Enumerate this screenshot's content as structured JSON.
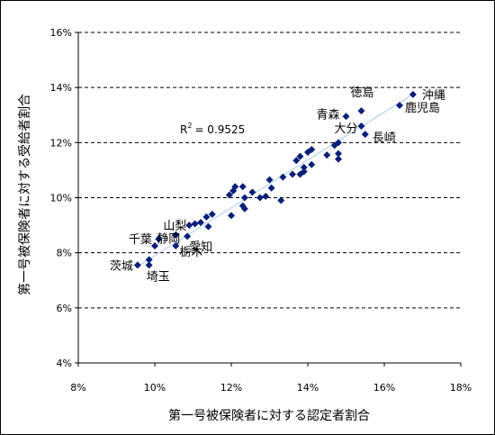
{
  "chart_data": {
    "type": "scatter",
    "xlabel": "第一号被保険者に対する認定者割合",
    "ylabel": "第一号被保険者に対する受給者割合",
    "xlim": [
      8,
      18
    ],
    "ylim": [
      4,
      16
    ],
    "x_ticks": [
      "8%",
      "10%",
      "12%",
      "14%",
      "16%",
      "18%"
    ],
    "y_ticks": [
      "4%",
      "6%",
      "8%",
      "10%",
      "12%",
      "14%",
      "16%"
    ],
    "grid": "horizontal-dashed",
    "marker_color": "#0a1f78",
    "trendline_color": "#a9cfe6",
    "r2_text": "= 0.9525",
    "trendline": {
      "x": [
        9.6,
        16.8
      ],
      "y": [
        7.55,
        13.8
      ]
    },
    "points": [
      {
        "x": 16.75,
        "y": 13.75,
        "label": "沖縄"
      },
      {
        "x": 16.4,
        "y": 13.35,
        "label": "鹿児島"
      },
      {
        "x": 15.4,
        "y": 13.15,
        "label": "徳島"
      },
      {
        "x": 15.0,
        "y": 12.95,
        "label": "青森"
      },
      {
        "x": 15.4,
        "y": 12.6,
        "label": "大分"
      },
      {
        "x": 15.5,
        "y": 12.3,
        "label": "長崎"
      },
      {
        "x": 14.8,
        "y": 12.0
      },
      {
        "x": 14.7,
        "y": 11.9
      },
      {
        "x": 14.8,
        "y": 11.6
      },
      {
        "x": 14.8,
        "y": 11.4
      },
      {
        "x": 14.5,
        "y": 11.55
      },
      {
        "x": 14.1,
        "y": 11.75
      },
      {
        "x": 14.0,
        "y": 11.65
      },
      {
        "x": 13.8,
        "y": 11.5
      },
      {
        "x": 13.9,
        "y": 11.1
      },
      {
        "x": 14.1,
        "y": 11.2
      },
      {
        "x": 13.7,
        "y": 11.35
      },
      {
        "x": 13.6,
        "y": 10.85
      },
      {
        "x": 13.8,
        "y": 10.85
      },
      {
        "x": 13.9,
        "y": 10.95
      },
      {
        "x": 13.35,
        "y": 10.75
      },
      {
        "x": 13.0,
        "y": 10.65
      },
      {
        "x": 13.05,
        "y": 10.35
      },
      {
        "x": 12.9,
        "y": 10.05
      },
      {
        "x": 12.75,
        "y": 10.0
      },
      {
        "x": 12.55,
        "y": 10.2
      },
      {
        "x": 13.3,
        "y": 9.9
      },
      {
        "x": 12.3,
        "y": 10.4
      },
      {
        "x": 12.1,
        "y": 10.4
      },
      {
        "x": 12.05,
        "y": 10.25
      },
      {
        "x": 11.95,
        "y": 10.1
      },
      {
        "x": 12.35,
        "y": 10.0
      },
      {
        "x": 12.3,
        "y": 9.7
      },
      {
        "x": 12.35,
        "y": 9.6
      },
      {
        "x": 12.0,
        "y": 9.35
      },
      {
        "x": 11.5,
        "y": 9.4
      },
      {
        "x": 11.35,
        "y": 9.3
      },
      {
        "x": 11.2,
        "y": 9.1
      },
      {
        "x": 11.4,
        "y": 8.95
      },
      {
        "x": 11.05,
        "y": 9.05
      },
      {
        "x": 10.9,
        "y": 9.0
      },
      {
        "x": 10.85,
        "y": 8.6,
        "label": "愛知"
      },
      {
        "x": 10.55,
        "y": 8.65,
        "label": "山梨"
      },
      {
        "x": 10.1,
        "y": 8.5,
        "label": "静岡"
      },
      {
        "x": 10.55,
        "y": 8.25,
        "label": "栃木"
      },
      {
        "x": 10.0,
        "y": 8.25,
        "label": "千葉"
      },
      {
        "x": 9.55,
        "y": 7.55,
        "label": "茨城"
      },
      {
        "x": 9.85,
        "y": 7.55,
        "label": "埼玉"
      },
      {
        "x": 9.85,
        "y": 7.75
      }
    ]
  }
}
